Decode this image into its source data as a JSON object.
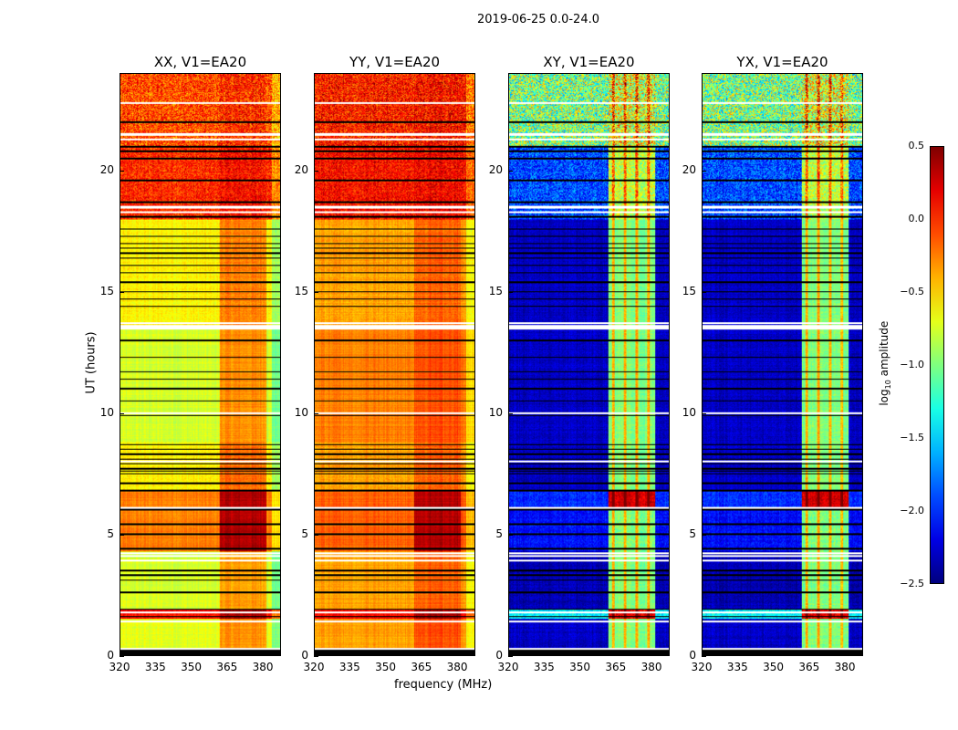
{
  "chart_data": {
    "type": "heatmap",
    "title": "2019-06-25 0.0-24.0",
    "xlabel": "frequency (MHz)",
    "ylabel": "UT (hours)",
    "xlim": [
      320,
      387.6
    ],
    "ylim": [
      0,
      24
    ],
    "xticks": [
      320,
      335,
      350,
      365,
      380
    ],
    "yticks": [
      0,
      5,
      10,
      15,
      20
    ],
    "colorbar": {
      "label_main": "log",
      "label_sub": "10",
      "label_tail": " amplitude",
      "range": [
        -2.5,
        0.5
      ],
      "ticks": [
        "0.5",
        "0.0",
        "−0.5",
        "−1.0",
        "−1.5",
        "−2.0",
        "−2.5"
      ],
      "tick_values": [
        0.5,
        0,
        -0.5,
        -1,
        -1.5,
        -2,
        -2.5
      ],
      "colormap": "jet"
    },
    "rfi_band_MHz": [
      362,
      382
    ],
    "black_flag_hours": [
      0.05,
      0.1,
      0.2,
      1.6,
      1.9,
      2.6,
      3.1,
      3.3,
      3.5,
      4.4,
      5.0,
      5.4,
      6.0,
      6.8,
      7.1,
      7.5,
      7.6,
      7.7,
      7.9,
      8.1,
      8.3,
      8.5,
      8.7,
      9.9,
      10.5,
      11.0,
      11.4,
      11.7,
      12.3,
      13.0,
      14.4,
      14.7,
      15.0,
      15.4,
      15.8,
      16.1,
      16.4,
      16.6,
      16.8,
      17.0,
      17.3,
      17.6,
      18.1,
      18.7,
      19.6,
      20.5,
      20.8,
      21.0,
      22.0
    ],
    "white_flag_hours": [
      0.25,
      1.4,
      1.75,
      3.9,
      4.1,
      4.2,
      6.1,
      8.0,
      10.0,
      13.5,
      13.6,
      13.7,
      18.3,
      18.5,
      21.3,
      21.5,
      22.8
    ],
    "panels": [
      {
        "title": "XX, V1=EA20",
        "segments": [
          [
            0,
            0.3,
            -2.6,
            -2.6,
            0
          ],
          [
            0.3,
            1.5,
            -0.7,
            -0.3,
            0.05
          ],
          [
            1.5,
            1.9,
            0.1,
            0.4,
            0.1
          ],
          [
            1.9,
            4.3,
            -0.75,
            -0.35,
            0.05
          ],
          [
            4.3,
            6.8,
            -0.25,
            0.35,
            0.05
          ],
          [
            6.8,
            8.8,
            -0.6,
            -0.2,
            0.08
          ],
          [
            8.8,
            13.5,
            -0.75,
            -0.3,
            0.05
          ],
          [
            13.5,
            18,
            -0.6,
            -0.25,
            0.08
          ],
          [
            18,
            21,
            0.0,
            0.1,
            0.25
          ],
          [
            21,
            24,
            -0.1,
            0.0,
            0.35
          ]
        ]
      },
      {
        "title": "YY, V1=EA20",
        "segments": [
          [
            0,
            0.3,
            -2.6,
            -2.6,
            0
          ],
          [
            0.3,
            1.5,
            -0.35,
            -0.1,
            0.05
          ],
          [
            1.5,
            1.9,
            0.1,
            0.4,
            0.1
          ],
          [
            1.9,
            4.3,
            -0.35,
            -0.15,
            0.05
          ],
          [
            4.3,
            6.8,
            -0.15,
            0.35,
            0.05
          ],
          [
            6.8,
            8.8,
            -0.35,
            -0.15,
            0.08
          ],
          [
            8.8,
            13.5,
            -0.25,
            -0.1,
            0.05
          ],
          [
            13.5,
            18,
            -0.35,
            -0.15,
            0.08
          ],
          [
            18,
            21,
            0.1,
            0.15,
            0.25
          ],
          [
            21,
            24,
            0.05,
            0.1,
            0.35
          ]
        ]
      },
      {
        "title": "XY, V1=EA20",
        "segments": [
          [
            0,
            0.3,
            -2.6,
            -2.6,
            0
          ],
          [
            0.3,
            1.5,
            -2.3,
            -1.0,
            0.1
          ],
          [
            1.5,
            1.9,
            -1.4,
            0.2,
            0.2
          ],
          [
            1.9,
            4.3,
            -2.35,
            -1.0,
            0.1
          ],
          [
            4.3,
            6.0,
            -2.1,
            -1.0,
            0.15
          ],
          [
            6.0,
            6.8,
            -2.0,
            0.25,
            0.15
          ],
          [
            6.8,
            8.8,
            -2.3,
            -1.0,
            0.1
          ],
          [
            8.8,
            13.5,
            -2.3,
            -1.0,
            0.1
          ],
          [
            13.5,
            18,
            -2.3,
            -1.0,
            0.1
          ],
          [
            18,
            21,
            -1.9,
            -0.8,
            0.35
          ],
          [
            21,
            24,
            -1.0,
            -0.7,
            0.7
          ]
        ]
      },
      {
        "title": "YX, V1=EA20",
        "segments": [
          [
            0,
            0.3,
            -2.6,
            -2.6,
            0
          ],
          [
            0.3,
            1.5,
            -2.3,
            -1.0,
            0.1
          ],
          [
            1.5,
            1.9,
            -1.4,
            0.2,
            0.2
          ],
          [
            1.9,
            4.3,
            -2.35,
            -1.0,
            0.1
          ],
          [
            4.3,
            6.0,
            -2.1,
            -1.0,
            0.15
          ],
          [
            6.0,
            6.8,
            -2.0,
            0.25,
            0.15
          ],
          [
            6.8,
            8.8,
            -2.3,
            -1.0,
            0.1
          ],
          [
            8.8,
            13.5,
            -2.3,
            -1.0,
            0.1
          ],
          [
            13.5,
            18,
            -2.3,
            -1.0,
            0.1
          ],
          [
            18,
            21,
            -1.9,
            -0.8,
            0.35
          ],
          [
            21,
            24,
            -1.0,
            -0.7,
            0.7
          ]
        ]
      }
    ]
  }
}
